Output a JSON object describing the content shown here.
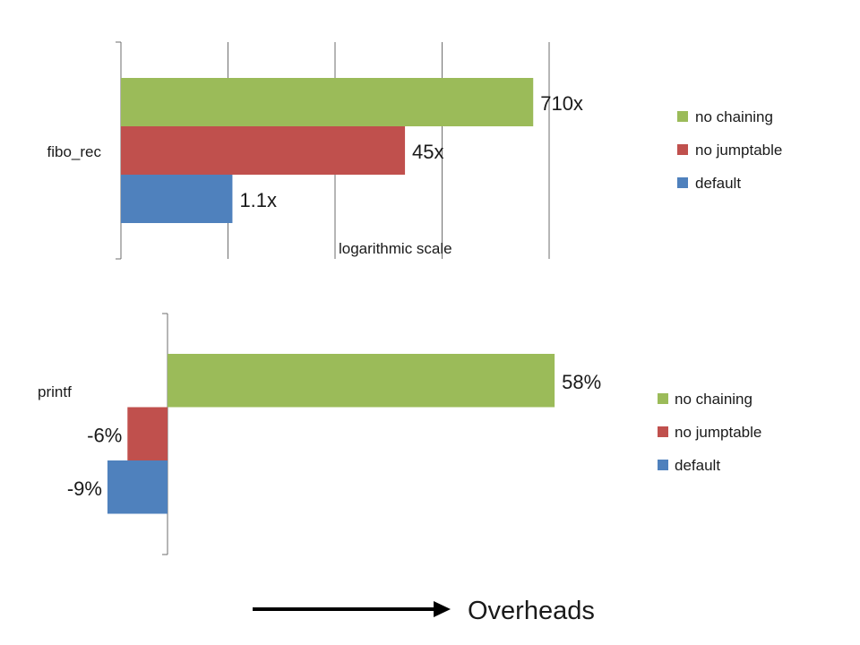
{
  "chart_data": [
    {
      "type": "bar",
      "orientation": "horizontal",
      "categories": [
        "fibo_rec"
      ],
      "series": [
        {
          "name": "no chaining",
          "values": [
            710
          ],
          "value_labels": [
            "710x"
          ],
          "color": "#9BBB59"
        },
        {
          "name": "no jumptable",
          "values": [
            45
          ],
          "value_labels": [
            "45x"
          ],
          "color": "#C0504D"
        },
        {
          "name": "default",
          "values": [
            1.1
          ],
          "value_labels": [
            "1.1x"
          ],
          "color": "#4F81BD"
        }
      ],
      "xscale": "log",
      "xlim": [
        0.1,
        1000
      ],
      "annotation": "logarithmic scale",
      "grid": true,
      "legend_position": "right"
    },
    {
      "type": "bar",
      "orientation": "horizontal",
      "categories": [
        "printf"
      ],
      "series": [
        {
          "name": "no chaining",
          "values": [
            58
          ],
          "value_labels": [
            "58%"
          ],
          "color": "#9BBB59"
        },
        {
          "name": "no jumptable",
          "values": [
            -6
          ],
          "value_labels": [
            "-6%"
          ],
          "color": "#C0504D"
        },
        {
          "name": "default",
          "values": [
            -9
          ],
          "value_labels": [
            "-9%"
          ],
          "color": "#4F81BD"
        }
      ],
      "xscale": "linear",
      "xlim": [
        -25,
        100
      ],
      "grid": false,
      "legend_position": "right"
    }
  ],
  "footer": {
    "label": "Overheads",
    "arrow_icon": "right-arrow-icon"
  }
}
